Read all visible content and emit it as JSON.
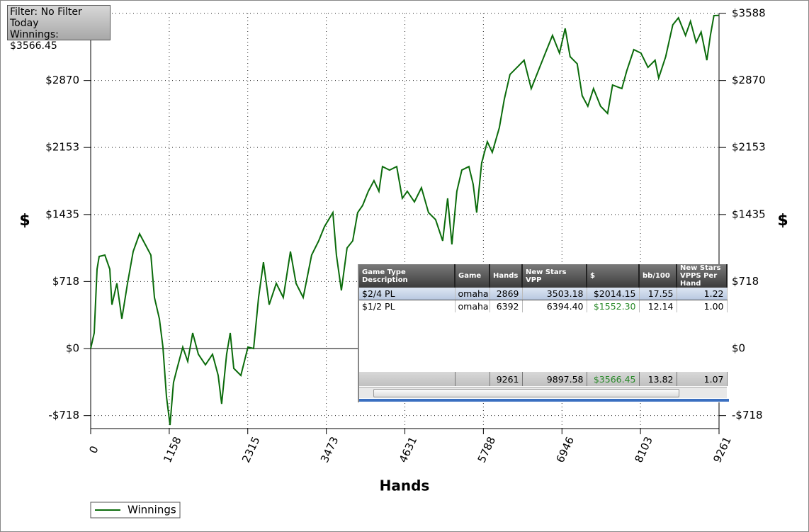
{
  "info_box": {
    "lines": [
      "Filter: No Filter",
      "Today",
      "Winnings: $3566.45"
    ]
  },
  "chart_data": {
    "type": "line",
    "x_label": "Hands",
    "y_label": "$",
    "y2_label": "$",
    "xlim": [
      0,
      9261
    ],
    "ylim": [
      -857,
      3588
    ],
    "xticks": [
      0,
      1158,
      2315,
      3473,
      4631,
      5788,
      6946,
      8103,
      9261
    ],
    "yticks": [
      {
        "value": -718,
        "label": "-$718"
      },
      {
        "value": 0,
        "label": "$0"
      },
      {
        "value": 718,
        "label": "$718"
      },
      {
        "value": 1435,
        "label": "$1435"
      },
      {
        "value": 2153,
        "label": "$2153"
      },
      {
        "value": 2870,
        "label": "$2870"
      },
      {
        "value": 3588,
        "label": "$3588"
      }
    ],
    "grid": true,
    "legend": "bottom-left",
    "x": [
      0,
      52,
      94,
      125,
      209,
      282,
      313,
      386,
      459,
      543,
      626,
      720,
      804,
      887,
      940,
      1013,
      1065,
      1117,
      1169,
      1221,
      1274,
      1357,
      1430,
      1503,
      1587,
      1691,
      1796,
      1879,
      1931,
      2004,
      2057,
      2109,
      2213,
      2318,
      2401,
      2474,
      2547,
      2631,
      2735,
      2839,
      2944,
      3027,
      3132,
      3257,
      3361,
      3445,
      3570,
      3622,
      3695,
      3779,
      3862,
      3935,
      4008,
      4092,
      4175,
      4248,
      4301,
      4405,
      4510,
      4593,
      4666,
      4771,
      4875,
      4979,
      5084,
      5188,
      5261,
      5324,
      5397,
      5470,
      5574,
      5637,
      5689,
      5762,
      5846,
      5919,
      6023,
      6096,
      6180,
      6284,
      6388,
      6493,
      6597,
      6701,
      6806,
      6910,
      6993,
      7066,
      7171,
      7244,
      7327,
      7411,
      7515,
      7619,
      7692,
      7828,
      7901,
      8005,
      8110,
      8214,
      8318,
      8371,
      8475,
      8579,
      8663,
      8767,
      8840,
      8924,
      8997,
      9081,
      9134,
      9186,
      9261
    ],
    "series": [
      {
        "name": "Winnings",
        "color": "#0b6b0b",
        "values": [
          0,
          167,
          850,
          986,
          1001,
          850,
          470,
          698,
          319,
          698,
          1039,
          1229,
          1115,
          1001,
          546,
          319,
          15,
          -516,
          -819,
          -364,
          -212,
          15,
          -137,
          167,
          -61,
          -174,
          -61,
          -288,
          -592,
          -61,
          167,
          -212,
          -288,
          15,
          0,
          546,
          925,
          470,
          698,
          546,
          1039,
          698,
          546,
          1001,
          1153,
          1305,
          1456,
          1001,
          622,
          1077,
          1153,
          1456,
          1532,
          1684,
          1798,
          1684,
          1949,
          1911,
          1949,
          1608,
          1684,
          1570,
          1722,
          1456,
          1380,
          1153,
          1608,
          1115,
          1684,
          1911,
          1949,
          1760,
          1456,
          1987,
          2215,
          2101,
          2366,
          2670,
          2935,
          3011,
          3087,
          2783,
          2973,
          3163,
          3353,
          3163,
          3428,
          3125,
          3049,
          2708,
          2594,
          2783,
          2594,
          2518,
          2822,
          2783,
          2973,
          3201,
          3163,
          3011,
          3087,
          2897,
          3125,
          3466,
          3542,
          3353,
          3504,
          3277,
          3390,
          3087,
          3353,
          3565,
          3566.45
        ]
      }
    ]
  },
  "table": {
    "headers": [
      "Game Type Description",
      "Game",
      "Hands",
      "New Stars VPP",
      "$",
      "bb/100",
      "New Stars VPPS Per Hand"
    ],
    "rows": [
      [
        "$2/4 PL",
        "omaha",
        "2869",
        "3503.18",
        "$2014.15",
        "17.55",
        "1.22"
      ],
      [
        "$1/2 PL",
        "omaha",
        "6392",
        "6394.40",
        "$1552.30",
        "12.14",
        "1.00"
      ]
    ],
    "totals": [
      "",
      "",
      "9261",
      "9897.58",
      "$3566.45",
      "13.82",
      "1.07"
    ]
  }
}
